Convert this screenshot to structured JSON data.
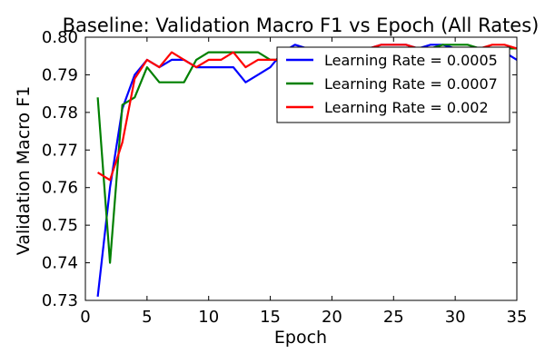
{
  "chart_data": {
    "type": "line",
    "title": "Baseline: Validation Macro F1 vs Epoch (All Rates)",
    "xlabel": "Epoch",
    "ylabel": "Validation Macro F1",
    "xlim": [
      0,
      35
    ],
    "ylim": [
      0.73,
      0.8
    ],
    "xticks": [
      0,
      5,
      10,
      15,
      20,
      25,
      30,
      35
    ],
    "yticks": [
      0.73,
      0.74,
      0.75,
      0.76,
      0.77,
      0.78,
      0.79,
      0.8
    ],
    "ytick_labels": [
      "0.73",
      "0.74",
      "0.75",
      "0.76",
      "0.77",
      "0.78",
      "0.79",
      "0.80"
    ],
    "grid": false,
    "legend_position": "top-right",
    "series": [
      {
        "name": "Learning Rate = 0.0005",
        "color": "#0000ff",
        "x": [
          1,
          2,
          3,
          4,
          5,
          6,
          7,
          8,
          9,
          10,
          11,
          12,
          13,
          14,
          15,
          16,
          17,
          18,
          19,
          20,
          21,
          22,
          23,
          24,
          25,
          26,
          27,
          28,
          29,
          30,
          31,
          32,
          33,
          34,
          35
        ],
        "y": [
          0.731,
          0.76,
          0.781,
          0.79,
          0.794,
          0.792,
          0.794,
          0.794,
          0.792,
          0.792,
          0.792,
          0.792,
          0.788,
          0.79,
          0.792,
          0.796,
          0.798,
          0.797,
          0.797,
          0.797,
          0.797,
          0.797,
          0.797,
          0.798,
          0.798,
          0.798,
          0.797,
          0.798,
          0.798,
          0.797,
          0.797,
          0.797,
          0.797,
          0.796,
          0.794
        ]
      },
      {
        "name": "Learning Rate = 0.0007",
        "color": "#008000",
        "x": [
          1,
          2,
          3,
          4,
          5,
          6,
          7,
          8,
          9,
          10,
          11,
          12,
          13,
          14,
          15,
          16,
          17,
          18,
          19,
          20,
          21,
          22,
          23,
          24,
          25,
          26,
          27,
          28,
          29,
          30,
          31,
          32,
          33,
          34,
          35
        ],
        "y": [
          0.784,
          0.74,
          0.782,
          0.784,
          0.792,
          0.788,
          0.788,
          0.788,
          0.794,
          0.796,
          0.796,
          0.796,
          0.796,
          0.796,
          0.794,
          0.794,
          0.795,
          0.796,
          0.797,
          0.797,
          0.797,
          0.797,
          0.797,
          0.797,
          0.797,
          0.797,
          0.797,
          0.797,
          0.798,
          0.798,
          0.798,
          0.797,
          0.797,
          0.797,
          0.797
        ]
      },
      {
        "name": "Learning Rate = 0.002",
        "color": "#ff0000",
        "x": [
          1,
          2,
          3,
          4,
          5,
          6,
          7,
          8,
          9,
          10,
          11,
          12,
          13,
          14,
          15,
          16,
          17,
          18,
          19,
          20,
          21,
          22,
          23,
          24,
          25,
          26,
          27,
          28,
          29,
          30,
          31,
          32,
          33,
          34,
          35
        ],
        "y": [
          0.764,
          0.762,
          0.772,
          0.789,
          0.794,
          0.792,
          0.796,
          0.794,
          0.792,
          0.794,
          0.794,
          0.796,
          0.792,
          0.794,
          0.794,
          0.794,
          0.796,
          0.797,
          0.797,
          0.797,
          0.797,
          0.797,
          0.797,
          0.798,
          0.798,
          0.798,
          0.797,
          0.797,
          0.797,
          0.797,
          0.797,
          0.797,
          0.798,
          0.798,
          0.797
        ]
      }
    ]
  }
}
